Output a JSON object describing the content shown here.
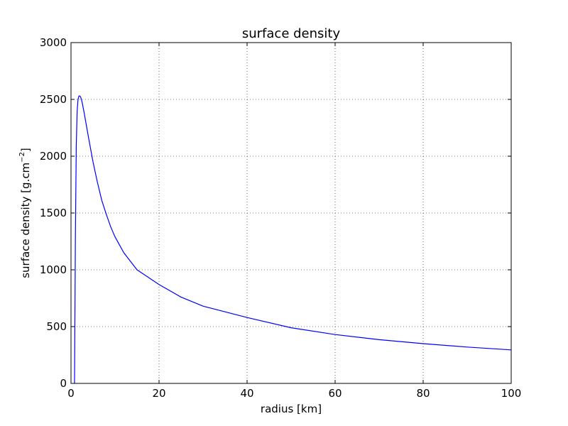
{
  "chart_data": {
    "type": "line",
    "title": "surface density",
    "xlabel": "radius [km]",
    "ylabel_main": "surface density [g.cm",
    "ylabel_sup": "−2",
    "ylabel_close": "]",
    "xlim": [
      0,
      100
    ],
    "ylim": [
      0,
      3000
    ],
    "xticks": [
      0,
      20,
      40,
      60,
      80,
      100
    ],
    "yticks": [
      0,
      500,
      1000,
      1500,
      2000,
      2500,
      3000
    ],
    "xtick_labels": [
      "0",
      "20",
      "40",
      "60",
      "80",
      "100"
    ],
    "ytick_labels": [
      "0",
      "500",
      "1000",
      "1500",
      "2000",
      "2500",
      "3000"
    ],
    "grid": true,
    "line_color": "#0000ff",
    "series": [
      {
        "x": [
          0.8,
          1.0,
          1.2,
          1.4,
          1.6,
          1.8,
          2.0,
          2.2,
          2.5,
          3,
          4,
          5,
          6,
          7,
          8,
          9,
          10,
          12,
          15,
          20,
          25,
          30,
          40,
          50,
          60,
          70,
          80,
          90,
          100
        ],
        "y": [
          0,
          1300,
          2100,
          2400,
          2500,
          2530,
          2530,
          2520,
          2480,
          2380,
          2160,
          1950,
          1770,
          1610,
          1490,
          1380,
          1290,
          1150,
          1000,
          870,
          760,
          680,
          580,
          490,
          430,
          385,
          350,
          320,
          295
        ]
      }
    ]
  }
}
